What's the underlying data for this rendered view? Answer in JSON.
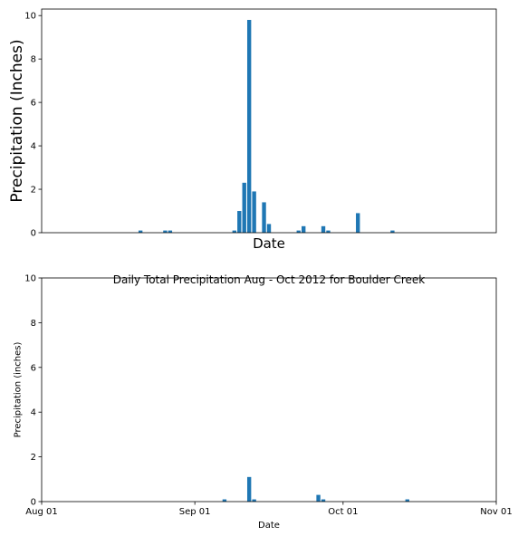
{
  "chart_data": [
    {
      "type": "bar",
      "title": "",
      "xlabel": "Date",
      "ylabel": "Precipitation (Inches)",
      "ylim": [
        0,
        10.3
      ],
      "yticks": [
        0,
        2,
        4,
        6,
        8,
        10
      ],
      "show_x_ticklabels": false,
      "x_start": "2012-08-01",
      "x_end": "2012-11-01",
      "color": "#1f77b4",
      "points": [
        {
          "x": "2012-08-21",
          "y": 0.1
        },
        {
          "x": "2012-08-26",
          "y": 0.1
        },
        {
          "x": "2012-08-27",
          "y": 0.1
        },
        {
          "x": "2012-09-09",
          "y": 0.1
        },
        {
          "x": "2012-09-10",
          "y": 1.0
        },
        {
          "x": "2012-09-11",
          "y": 2.3
        },
        {
          "x": "2012-09-12",
          "y": 9.8
        },
        {
          "x": "2012-09-13",
          "y": 1.9
        },
        {
          "x": "2012-09-15",
          "y": 1.4
        },
        {
          "x": "2012-09-16",
          "y": 0.4
        },
        {
          "x": "2012-09-22",
          "y": 0.1
        },
        {
          "x": "2012-09-23",
          "y": 0.3
        },
        {
          "x": "2012-09-27",
          "y": 0.3
        },
        {
          "x": "2012-09-28",
          "y": 0.1
        },
        {
          "x": "2012-10-04",
          "y": 0.9
        },
        {
          "x": "2012-10-11",
          "y": 0.1
        }
      ]
    },
    {
      "type": "bar",
      "title": "Daily Total Precipitation Aug - Oct 2012 for Boulder Creek",
      "xlabel": "Date",
      "ylabel": "Precipitation (inches)",
      "ylim": [
        0,
        10
      ],
      "yticks": [
        0,
        2,
        4,
        6,
        8,
        10
      ],
      "show_x_ticklabels": true,
      "x_start": "2012-08-01",
      "x_end": "2012-11-01",
      "xticks": [
        {
          "x": "2012-08-01",
          "label": "Aug 01"
        },
        {
          "x": "2012-09-01",
          "label": "Sep 01"
        },
        {
          "x": "2012-10-01",
          "label": "Oct 01"
        },
        {
          "x": "2012-11-01",
          "label": "Nov 01"
        }
      ],
      "color": "#1f77b4",
      "points": [
        {
          "x": "2012-09-07",
          "y": 0.1
        },
        {
          "x": "2012-09-12",
          "y": 1.1
        },
        {
          "x": "2012-09-13",
          "y": 0.1
        },
        {
          "x": "2012-09-26",
          "y": 0.3
        },
        {
          "x": "2012-09-27",
          "y": 0.1
        },
        {
          "x": "2012-10-14",
          "y": 0.1
        }
      ]
    }
  ]
}
